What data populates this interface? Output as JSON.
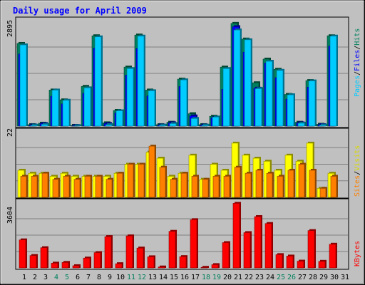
{
  "title": "Daily usage for April 2009",
  "colors": {
    "background": "#c0c0c0",
    "pages": "#00ccff",
    "files": "#0000ff",
    "hits": "#00805c",
    "sites": "#ff8000",
    "visits": "#ffff00",
    "kbytes": "#ff0000",
    "weekend_label": "#00805c",
    "title": "#0000ff"
  },
  "labels": {
    "pages": "Pages",
    "files": "Files",
    "hits": "Hits",
    "sites": "Sites",
    "visits": "Visits",
    "kbytes": "KBytes",
    "sep": "/"
  },
  "chart_data": {
    "type": "bar",
    "days": [
      "1",
      "2",
      "3",
      "4",
      "5",
      "6",
      "7",
      "8",
      "9",
      "10",
      "11",
      "12",
      "13",
      "14",
      "15",
      "16",
      "17",
      "18",
      "19",
      "20",
      "21",
      "22",
      "23",
      "24",
      "25",
      "26",
      "27",
      "28",
      "29",
      "30",
      "31"
    ],
    "weekend_days": [
      "4",
      "5",
      "11",
      "12",
      "18",
      "19",
      "25",
      "26"
    ],
    "panels": [
      {
        "id": "hits",
        "ymax": 2895,
        "ymax_label": "2895",
        "series": [
          {
            "name": "Hits",
            "values": [
              2270,
              40,
              80,
              990,
              720,
              20,
              1090,
              2480,
              90,
              430,
              1620,
              2500,
              990,
              40,
              105,
              1290,
              340,
              40,
              270,
              1620,
              2820,
              2390,
              1190,
              1840,
              1560,
              870,
              105,
              1250,
              50,
              2480,
              0
            ]
          },
          {
            "name": "Files",
            "values": [
              1980,
              30,
              70,
              820,
              610,
              15,
              900,
              2140,
              70,
              360,
              1400,
              2130,
              830,
              30,
              90,
              1090,
              280,
              30,
              230,
              1010,
              2730,
              2030,
              1040,
              1730,
              1330,
              740,
              90,
              1070,
              40,
              2200,
              0
            ]
          },
          {
            "name": "Pages",
            "values": [
              2230,
              25,
              50,
              990,
              710,
              10,
              1050,
              2450,
              40,
              420,
              1580,
              2470,
              970,
              25,
              70,
              1270,
              210,
              25,
              250,
              1580,
              2640,
              2370,
              1030,
              1780,
              1530,
              860,
              80,
              1240,
              30,
              2470,
              0
            ]
          }
        ]
      },
      {
        "id": "sites",
        "ymax": 22,
        "ymax_label": "22",
        "series": [
          {
            "name": "Visits",
            "values": [
              9,
              8,
              8,
              7,
              8,
              7,
              7,
              7,
              7,
              8,
              11,
              11,
              15,
              13,
              7,
              8,
              14,
              6,
              11,
              9,
              18,
              14,
              13,
              12,
              9,
              14,
              12,
              18,
              3,
              8,
              0
            ]
          },
          {
            "name": "Sites",
            "values": [
              7,
              7,
              8,
              6,
              7,
              6,
              7,
              7,
              6,
              8,
              11,
              11,
              17,
              10,
              6,
              8,
              7,
              6,
              7,
              7,
              10,
              8,
              9,
              8,
              7,
              9,
              11,
              9,
              3,
              7,
              0
            ]
          }
        ]
      },
      {
        "id": "kbytes",
        "ymax": 3604,
        "ymax_label": "3604",
        "series": [
          {
            "name": "KBytes",
            "values": [
              1540,
              680,
              1110,
              260,
              300,
              120,
              540,
              840,
              1720,
              230,
              1760,
              1090,
              610,
              50,
              2010,
              620,
              2650,
              30,
              180,
              1390,
              3550,
              1940,
              2820,
              2440,
              730,
              650,
              370,
              2050,
              360,
              1300,
              0
            ]
          }
        ]
      }
    ]
  }
}
